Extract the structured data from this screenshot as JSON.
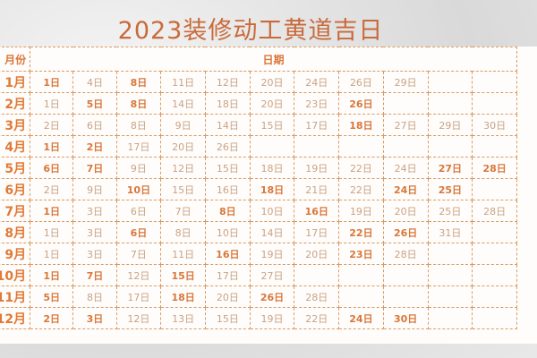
{
  "title": "2023装修动工黄道吉日",
  "header": {
    "month": "月份",
    "dates": "日期"
  },
  "rows": [
    {
      "month": "1月",
      "days": [
        {
          "t": "1日",
          "b": 1
        },
        {
          "t": "4日"
        },
        {
          "t": "8日",
          "b": 1
        },
        {
          "t": "11日"
        },
        {
          "t": "12日"
        },
        {
          "t": "20日"
        },
        {
          "t": "24日"
        },
        {
          "t": "26日"
        },
        {
          "t": "29日"
        }
      ]
    },
    {
      "month": "2月",
      "days": [
        {
          "t": "1日"
        },
        {
          "t": "5日",
          "b": 1
        },
        {
          "t": "8日",
          "b": 1
        },
        {
          "t": "14日"
        },
        {
          "t": "18日"
        },
        {
          "t": "20日"
        },
        {
          "t": "23日"
        },
        {
          "t": "26日",
          "b": 1
        }
      ]
    },
    {
      "month": "3月",
      "days": [
        {
          "t": "2日"
        },
        {
          "t": "6日"
        },
        {
          "t": "8日"
        },
        {
          "t": "9日"
        },
        {
          "t": "14日"
        },
        {
          "t": "15日"
        },
        {
          "t": "17日"
        },
        {
          "t": "18日",
          "b": 1
        },
        {
          "t": "27日"
        },
        {
          "t": "29日"
        },
        {
          "t": "30日"
        }
      ]
    },
    {
      "month": "4月",
      "days": [
        {
          "t": "1日",
          "b": 1
        },
        {
          "t": "2日",
          "b": 1
        },
        {
          "t": "17日"
        },
        {
          "t": "20日"
        },
        {
          "t": "26日"
        }
      ]
    },
    {
      "month": "5月",
      "days": [
        {
          "t": "6日",
          "b": 1
        },
        {
          "t": "7日",
          "b": 1
        },
        {
          "t": "9日"
        },
        {
          "t": "12日"
        },
        {
          "t": "15日"
        },
        {
          "t": "18日"
        },
        {
          "t": "19日"
        },
        {
          "t": "22日"
        },
        {
          "t": "24日"
        },
        {
          "t": "27日",
          "b": 1
        },
        {
          "t": "28日",
          "b": 1
        }
      ]
    },
    {
      "month": "6月",
      "days": [
        {
          "t": "2日"
        },
        {
          "t": "9日"
        },
        {
          "t": "10日",
          "b": 1
        },
        {
          "t": "15日"
        },
        {
          "t": "16日"
        },
        {
          "t": "18日",
          "b": 1
        },
        {
          "t": "21日"
        },
        {
          "t": "22日"
        },
        {
          "t": "24日",
          "b": 1
        },
        {
          "t": "25日",
          "b": 1
        }
      ]
    },
    {
      "month": "7月",
      "days": [
        {
          "t": "1日",
          "b": 1
        },
        {
          "t": "3日"
        },
        {
          "t": "6日"
        },
        {
          "t": "7日"
        },
        {
          "t": "8日",
          "b": 1
        },
        {
          "t": "10日"
        },
        {
          "t": "16日",
          "b": 1
        },
        {
          "t": "19日"
        },
        {
          "t": "20日"
        },
        {
          "t": "25日"
        },
        {
          "t": "28日"
        }
      ]
    },
    {
      "month": "8月",
      "days": [
        {
          "t": "1日"
        },
        {
          "t": "3日"
        },
        {
          "t": "6日",
          "b": 1
        },
        {
          "t": "8日"
        },
        {
          "t": "10日"
        },
        {
          "t": "14日"
        },
        {
          "t": "17日"
        },
        {
          "t": "22日",
          "b": 1
        },
        {
          "t": "26日",
          "b": 1
        },
        {
          "t": "31日"
        }
      ]
    },
    {
      "month": "9月",
      "days": [
        {
          "t": "1日"
        },
        {
          "t": "3日"
        },
        {
          "t": "7日"
        },
        {
          "t": "11日"
        },
        {
          "t": "16日",
          "b": 1
        },
        {
          "t": "19日"
        },
        {
          "t": "20日"
        },
        {
          "t": "23日",
          "b": 1
        },
        {
          "t": "28日"
        }
      ]
    },
    {
      "month": "10月",
      "days": [
        {
          "t": "1日",
          "b": 1
        },
        {
          "t": "7日",
          "b": 1
        },
        {
          "t": "12日"
        },
        {
          "t": "15日",
          "b": 1
        },
        {
          "t": "17日"
        },
        {
          "t": "27日"
        }
      ]
    },
    {
      "month": "11月",
      "days": [
        {
          "t": "5日",
          "b": 1
        },
        {
          "t": "8日"
        },
        {
          "t": "17日"
        },
        {
          "t": "18日",
          "b": 1
        },
        {
          "t": "20日"
        },
        {
          "t": "26日",
          "b": 1
        },
        {
          "t": "28日"
        }
      ]
    },
    {
      "month": "12月",
      "days": [
        {
          "t": "2日",
          "b": 1
        },
        {
          "t": "3日",
          "b": 1
        },
        {
          "t": "12日"
        },
        {
          "t": "13日"
        },
        {
          "t": "15日"
        },
        {
          "t": "19日"
        },
        {
          "t": "22日"
        },
        {
          "t": "24日",
          "b": 1
        },
        {
          "t": "30日",
          "b": 1
        }
      ]
    }
  ]
}
